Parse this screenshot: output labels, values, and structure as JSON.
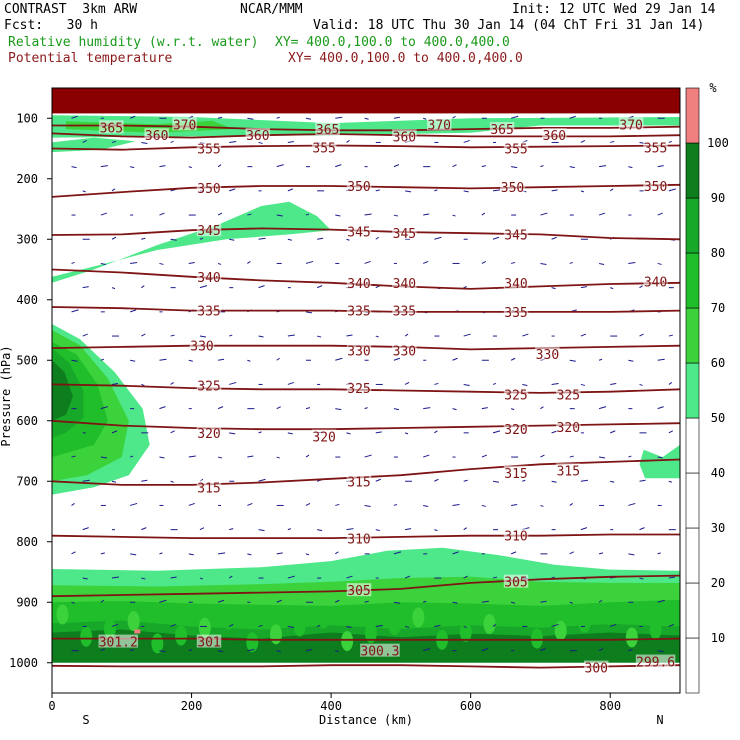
{
  "header": {
    "model": "CONTRAST  3km ARW",
    "org": "NCAR/MMM",
    "init": "Init: 12 UTC Wed 29 Jan 14",
    "fcst": "Fcst:   30 h",
    "valid": "Valid: 18 UTC Thu 30 Jan 14 (04 ChT Fri 31 Jan 14)",
    "field1": "Relative humidity (w.r.t. water)",
    "field1_xy": "XY= 400.0,100.0 to 400.0,400.0",
    "field2": "Potential temperature",
    "field2_xy": "XY= 400.0,100.0 to 400.0,400.0"
  },
  "colors": {
    "rh_50_60": "#4ee88a",
    "rh_60_70": "#3cd23c",
    "rh_70_80": "#1fbe2a",
    "rh_80_90": "#17a82a",
    "rh_90_100": "#0d7d1d",
    "rh_100_plus": "#f08080",
    "theta_line": "#7f1414",
    "wind": "#1a1a8c"
  },
  "chart_data": {
    "type": "cross-section",
    "title": "Relative humidity (w.r.t. water) and Potential temperature",
    "xlabel": "Distance (km)",
    "ylabel": "Pressure (hPa)",
    "xlim": [
      0,
      900
    ],
    "ylim": [
      1050,
      50
    ],
    "x_ticks": [
      "0",
      "200",
      "400",
      "600",
      "800"
    ],
    "x_tick_values": [
      0,
      200,
      400,
      600,
      800
    ],
    "y_ticks": [
      "100",
      "200",
      "300",
      "400",
      "500",
      "600",
      "700",
      "800",
      "900",
      "1000"
    ],
    "y_tick_values": [
      100,
      200,
      300,
      400,
      500,
      600,
      700,
      800,
      900,
      1000
    ],
    "left_end_label": "S",
    "right_end_label": "N",
    "colorbar": {
      "unit": "%",
      "ticks": [
        "10",
        "20",
        "30",
        "40",
        "50",
        "60",
        "70",
        "80",
        "90",
        "100"
      ],
      "tick_values": [
        10,
        20,
        30,
        40,
        50,
        60,
        70,
        80,
        90,
        100
      ]
    },
    "theta_contours": [
      {
        "value": 365,
        "pressures": [
          112,
          112,
          114,
          118,
          120,
          120,
          118,
          116,
          116,
          114
        ]
      },
      {
        "value": 360,
        "pressures": [
          125,
          130,
          132,
          128,
          126,
          128,
          130,
          130,
          130,
          128
        ]
      },
      {
        "value": 355,
        "pressures": [
          150,
          152,
          148,
          146,
          145,
          146,
          148,
          147,
          146,
          145
        ]
      },
      {
        "value": 350,
        "pressures": [
          230,
          222,
          215,
          212,
          212,
          214,
          216,
          214,
          212,
          210
        ]
      },
      {
        "value": 345,
        "pressures": [
          293,
          292,
          285,
          282,
          284,
          288,
          290,
          292,
          298,
          300
        ]
      },
      {
        "value": 340,
        "pressures": [
          350,
          355,
          362,
          368,
          372,
          378,
          382,
          378,
          374,
          372
        ]
      },
      {
        "value": 335,
        "pressures": [
          412,
          414,
          418,
          418,
          418,
          420,
          420,
          420,
          420,
          418
        ]
      },
      {
        "value": 330,
        "pressures": [
          480,
          478,
          476,
          476,
          476,
          478,
          482,
          480,
          478,
          476
        ]
      },
      {
        "value": 325,
        "pressures": [
          540,
          542,
          546,
          548,
          548,
          550,
          552,
          554,
          552,
          548
        ]
      },
      {
        "value": 320,
        "pressures": [
          600,
          608,
          612,
          614,
          614,
          612,
          610,
          608,
          606,
          604
        ]
      },
      {
        "value": 315,
        "pressures": [
          700,
          706,
          706,
          702,
          696,
          690,
          680,
          672,
          668,
          664
        ]
      },
      {
        "value": 310,
        "pressures": [
          790,
          792,
          794,
          794,
          794,
          792,
          790,
          790,
          788,
          788
        ]
      },
      {
        "value": 305,
        "pressures": [
          890,
          888,
          886,
          884,
          882,
          878,
          868,
          862,
          858,
          856
        ]
      },
      {
        "value": 301,
        "pressures": [
          960,
          960,
          960,
          962,
          962,
          962,
          962,
          962,
          962,
          960
        ]
      },
      {
        "value": 300,
        "pressures": [
          1005,
          1006,
          1006,
          1006,
          1004,
          1004,
          1006,
          1008,
          1006,
          1004
        ]
      }
    ],
    "contour_labels": [
      {
        "text": "370",
        "x": 190,
        "p": 110
      },
      {
        "text": "370",
        "x": 555,
        "p": 110
      },
      {
        "text": "370",
        "x": 830,
        "p": 110
      },
      {
        "text": "365",
        "x": 85,
        "p": 115
      },
      {
        "text": "365",
        "x": 395,
        "p": 118
      },
      {
        "text": "365",
        "x": 645,
        "p": 118
      },
      {
        "text": "360",
        "x": 150,
        "p": 128
      },
      {
        "text": "360",
        "x": 295,
        "p": 128
      },
      {
        "text": "360",
        "x": 505,
        "p": 130
      },
      {
        "text": "360",
        "x": 720,
        "p": 128
      },
      {
        "text": "355",
        "x": 225,
        "p": 150
      },
      {
        "text": "355",
        "x": 390,
        "p": 148
      },
      {
        "text": "355",
        "x": 665,
        "p": 150
      },
      {
        "text": "355",
        "x": 865,
        "p": 148
      },
      {
        "text": "350",
        "x": 225,
        "p": 215
      },
      {
        "text": "350",
        "x": 440,
        "p": 212
      },
      {
        "text": "350",
        "x": 660,
        "p": 214
      },
      {
        "text": "350",
        "x": 865,
        "p": 212
      },
      {
        "text": "345",
        "x": 225,
        "p": 285
      },
      {
        "text": "345",
        "x": 440,
        "p": 287
      },
      {
        "text": "345",
        "x": 505,
        "p": 290
      },
      {
        "text": "345",
        "x": 665,
        "p": 292
      },
      {
        "text": "340",
        "x": 225,
        "p": 362
      },
      {
        "text": "340",
        "x": 440,
        "p": 372
      },
      {
        "text": "340",
        "x": 505,
        "p": 372
      },
      {
        "text": "340",
        "x": 665,
        "p": 372
      },
      {
        "text": "340",
        "x": 865,
        "p": 370
      },
      {
        "text": "335",
        "x": 225,
        "p": 418
      },
      {
        "text": "335",
        "x": 440,
        "p": 418
      },
      {
        "text": "335",
        "x": 505,
        "p": 418
      },
      {
        "text": "335",
        "x": 665,
        "p": 420
      },
      {
        "text": "330",
        "x": 215,
        "p": 476
      },
      {
        "text": "330",
        "x": 440,
        "p": 484
      },
      {
        "text": "330",
        "x": 505,
        "p": 484
      },
      {
        "text": "330",
        "x": 710,
        "p": 490
      },
      {
        "text": "325",
        "x": 225,
        "p": 542
      },
      {
        "text": "325",
        "x": 440,
        "p": 546
      },
      {
        "text": "325",
        "x": 665,
        "p": 557
      },
      {
        "text": "325",
        "x": 740,
        "p": 557
      },
      {
        "text": "320",
        "x": 225,
        "p": 620
      },
      {
        "text": "320",
        "x": 390,
        "p": 626
      },
      {
        "text": "320",
        "x": 665,
        "p": 614
      },
      {
        "text": "320",
        "x": 740,
        "p": 610
      },
      {
        "text": "315",
        "x": 225,
        "p": 710
      },
      {
        "text": "315",
        "x": 440,
        "p": 700
      },
      {
        "text": "315",
        "x": 665,
        "p": 686
      },
      {
        "text": "315",
        "x": 740,
        "p": 682
      },
      {
        "text": "310",
        "x": 440,
        "p": 795
      },
      {
        "text": "310",
        "x": 665,
        "p": 790
      },
      {
        "text": "305",
        "x": 440,
        "p": 880
      },
      {
        "text": "305",
        "x": 665,
        "p": 866
      },
      {
        "text": "301.2",
        "x": 95,
        "p": 965
      },
      {
        "text": "301",
        "x": 225,
        "p": 965
      },
      {
        "text": "300.3",
        "x": 470,
        "p": 980
      },
      {
        "text": "300",
        "x": 780,
        "p": 1008
      },
      {
        "text": "299.6",
        "x": 865,
        "p": 998
      }
    ],
    "rh_regions": [
      {
        "level": "50-60",
        "note": "upper moist tongue 230-310 hPa, x 0-400 km"
      },
      {
        "level": "50-100",
        "note": "mid-level moist region 430-720 hPa, x 0-140 km"
      },
      {
        "level": "50-100",
        "note": "boundary layer below 820-860 hPa across section"
      },
      {
        "level": "90-100",
        "note": "stratospheric band near 50-100 hPa"
      },
      {
        "level": "50-60",
        "note": "small patch near 650-690 hPa, x 850-900 km"
      }
    ]
  }
}
